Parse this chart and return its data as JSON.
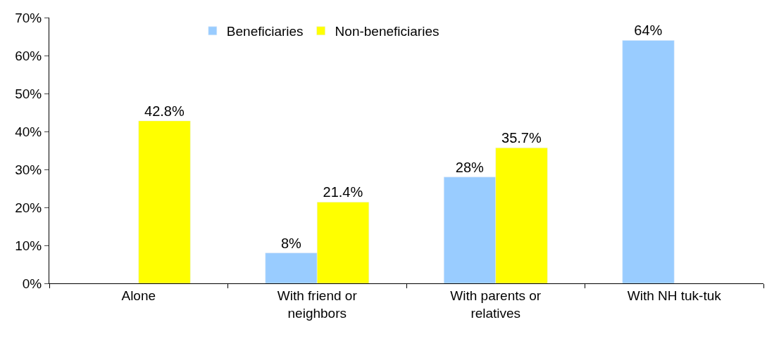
{
  "chart_data": {
    "type": "bar",
    "categories": [
      "Alone",
      "With friend or neighbors",
      "With parents or relatives",
      "With NH tuk-tuk"
    ],
    "series": [
      {
        "name": "Beneficiaries",
        "color": "#99ccff",
        "values": [
          null,
          8,
          28,
          64
        ],
        "value_labels": [
          null,
          "8%",
          "28%",
          "64%"
        ]
      },
      {
        "name": "Non-beneficiaries",
        "color": "#ffff00",
        "values": [
          42.8,
          21.4,
          35.7,
          null
        ],
        "value_labels": [
          "42.8%",
          "21.4%",
          "35.7%",
          null
        ]
      }
    ],
    "ylim": [
      0,
      70
    ],
    "yticks": [
      {
        "value": 0,
        "label": "0%"
      },
      {
        "value": 10,
        "label": "10%"
      },
      {
        "value": 20,
        "label": "20%"
      },
      {
        "value": 30,
        "label": "30%"
      },
      {
        "value": 40,
        "label": "40%"
      },
      {
        "value": 50,
        "label": "50%"
      },
      {
        "value": 60,
        "label": "60%"
      },
      {
        "value": 70,
        "label": "70%"
      }
    ],
    "legend": "top"
  }
}
